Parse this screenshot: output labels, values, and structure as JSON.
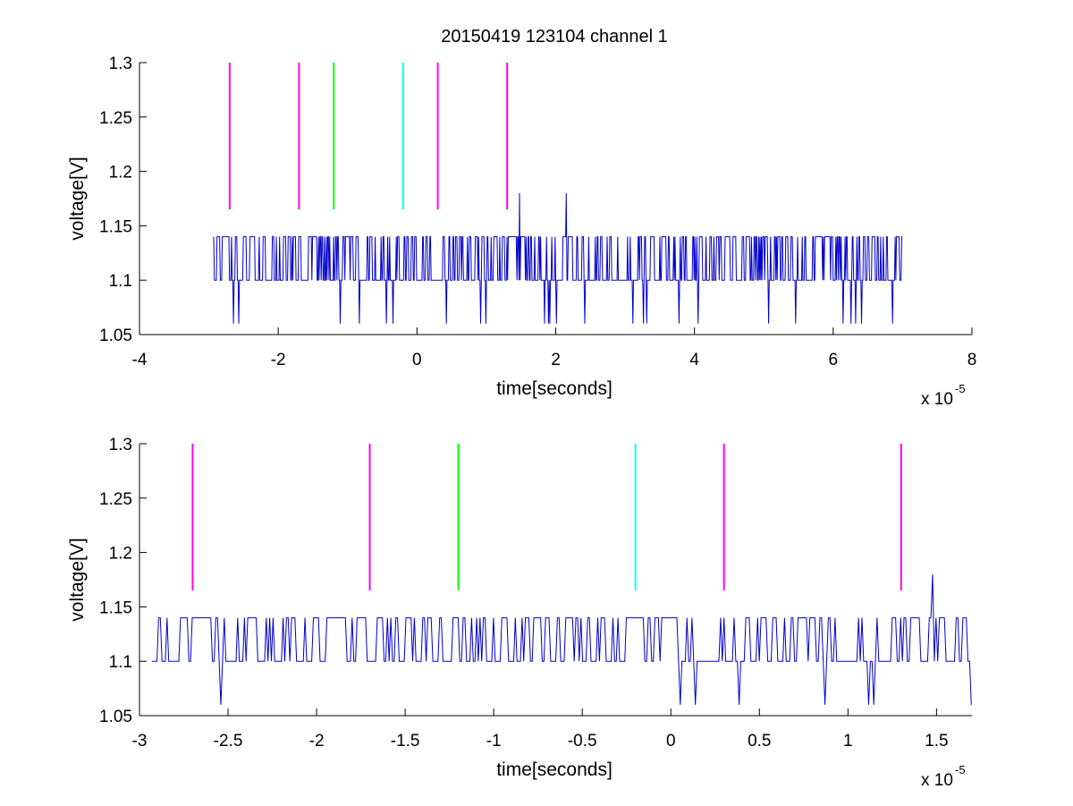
{
  "chart_data": [
    {
      "type": "line",
      "title": "20150419 123104 channel 1",
      "xlabel": "time[seconds]",
      "ylabel": "voltage[V]",
      "xlim": [
        -4,
        8
      ],
      "ylim": [
        1.05,
        1.3
      ],
      "x_scale_label": "x 10",
      "x_scale_exponent": "-5",
      "x_ticks": [
        -4,
        -2,
        0,
        2,
        4,
        6,
        8
      ],
      "x_tick_labels": [
        "-4",
        "-2",
        "0",
        "2",
        "4",
        "6",
        "8"
      ],
      "y_ticks": [
        1.05,
        1.1,
        1.15,
        1.2,
        1.25,
        1.3
      ],
      "y_tick_labels": [
        "1.05",
        "1.1",
        "1.15",
        "1.2",
        "1.25",
        "1.3"
      ],
      "signal": {
        "color": "#0000cc",
        "x_start": -2.93,
        "x_end": 7.0,
        "baseline": 1.1,
        "upper_level": 1.14,
        "lower_level": 1.06,
        "peaks": [
          {
            "x": 1.48,
            "y": 1.18
          },
          {
            "x": 2.15,
            "y": 1.18
          }
        ]
      },
      "markers": [
        {
          "x": -2.7,
          "color": "#ff00ff",
          "y_from": 1.165,
          "y_to": 1.3
        },
        {
          "x": -1.7,
          "color": "#ff00ff",
          "y_from": 1.165,
          "y_to": 1.3
        },
        {
          "x": -1.2,
          "color": "#00ff00",
          "y_from": 1.165,
          "y_to": 1.3
        },
        {
          "x": -0.2,
          "color": "#00ffff",
          "y_from": 1.165,
          "y_to": 1.3
        },
        {
          "x": 0.3,
          "color": "#ff00ff",
          "y_from": 1.165,
          "y_to": 1.3
        },
        {
          "x": 1.3,
          "color": "#ff00ff",
          "y_from": 1.165,
          "y_to": 1.3
        }
      ]
    },
    {
      "type": "line",
      "title": "",
      "xlabel": "time[seconds]",
      "ylabel": "voltage[V]",
      "xlim": [
        -3,
        1.7
      ],
      "ylim": [
        1.05,
        1.3
      ],
      "x_scale_label": "x 10",
      "x_scale_exponent": "-5",
      "x_ticks": [
        -3,
        -2.5,
        -2,
        -1.5,
        -1,
        -0.5,
        0,
        0.5,
        1,
        1.5
      ],
      "x_tick_labels": [
        "-3",
        "-2.5",
        "-2",
        "-1.5",
        "-1",
        "-0.5",
        "0",
        "0.5",
        "1",
        "1.5"
      ],
      "y_ticks": [
        1.05,
        1.1,
        1.15,
        1.2,
        1.25,
        1.3
      ],
      "y_tick_labels": [
        "1.05",
        "1.1",
        "1.15",
        "1.2",
        "1.25",
        "1.3"
      ],
      "signal": {
        "color": "#0000cc",
        "x_start": -2.93,
        "x_end": 1.7,
        "baseline": 1.1,
        "upper_level": 1.14,
        "lower_level": 1.06,
        "peaks": [
          {
            "x": 1.48,
            "y": 1.18
          }
        ]
      },
      "markers": [
        {
          "x": -2.7,
          "color": "#ff00ff",
          "y_from": 1.165,
          "y_to": 1.3
        },
        {
          "x": -1.7,
          "color": "#ff00ff",
          "y_from": 1.165,
          "y_to": 1.3
        },
        {
          "x": -1.2,
          "color": "#00ff00",
          "y_from": 1.165,
          "y_to": 1.3
        },
        {
          "x": -0.2,
          "color": "#00ffff",
          "y_from": 1.165,
          "y_to": 1.3
        },
        {
          "x": 0.3,
          "color": "#ff00ff",
          "y_from": 1.165,
          "y_to": 1.3
        },
        {
          "x": 1.3,
          "color": "#ff00ff",
          "y_from": 1.165,
          "y_to": 1.3
        }
      ]
    }
  ]
}
